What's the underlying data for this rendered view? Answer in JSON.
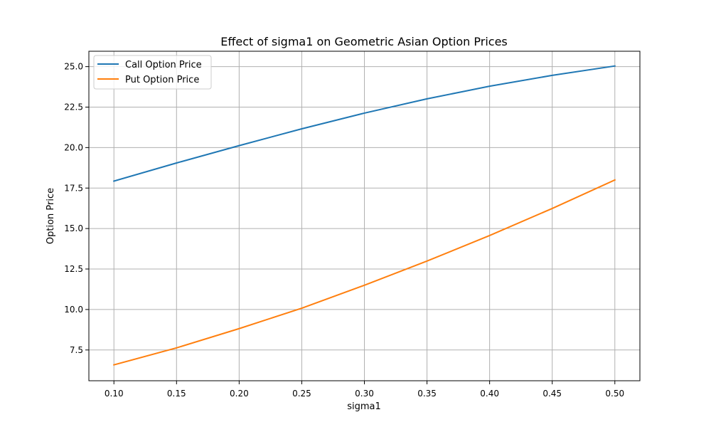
{
  "chart_data": {
    "type": "line",
    "title": "Effect of sigma1 on Geometric Asian Option Prices",
    "xlabel": "sigma1",
    "ylabel": "Option Price",
    "xlim": [
      0.08,
      0.52
    ],
    "ylim": [
      5.6,
      25.95
    ],
    "x_ticks": [
      0.1,
      0.15,
      0.2,
      0.25,
      0.3,
      0.35,
      0.4,
      0.45,
      0.5
    ],
    "x_tick_labels": [
      "0.10",
      "0.15",
      "0.20",
      "0.25",
      "0.30",
      "0.35",
      "0.40",
      "0.45",
      "0.50"
    ],
    "y_ticks": [
      7.5,
      10.0,
      12.5,
      15.0,
      17.5,
      20.0,
      22.5,
      25.0
    ],
    "y_tick_labels": [
      "7.5",
      "10.0",
      "12.5",
      "15.0",
      "17.5",
      "20.0",
      "22.5",
      "25.0"
    ],
    "grid": true,
    "legend_position": "top-left",
    "x": [
      0.1,
      0.15,
      0.2,
      0.25,
      0.3,
      0.35,
      0.4,
      0.45,
      0.5
    ],
    "series": [
      {
        "name": "Call Option Price",
        "color": "#1f77b4",
        "values": [
          17.93,
          19.05,
          20.12,
          21.16,
          22.13,
          23.01,
          23.79,
          24.46,
          25.04
        ]
      },
      {
        "name": "Put Option Price",
        "color": "#ff7f0e",
        "values": [
          6.58,
          7.63,
          8.82,
          10.08,
          11.5,
          12.99,
          14.57,
          16.24,
          18.0
        ]
      }
    ]
  }
}
